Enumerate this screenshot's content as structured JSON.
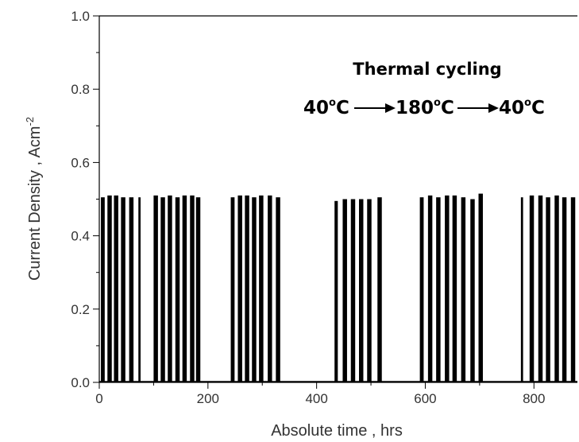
{
  "chart_data": {
    "type": "bar",
    "xlabel": "Absolute time , hrs",
    "ylabel": "Current Density , Acm",
    "ylabel_superscript": "-2",
    "xlim": [
      0,
      880
    ],
    "ylim": [
      0,
      1.0
    ],
    "x_ticks": [
      "0",
      "200",
      "400",
      "600",
      "800"
    ],
    "x_tick_values": [
      0,
      200,
      400,
      600,
      800
    ],
    "y_ticks": [
      "0.0",
      "0.2",
      "0.4",
      "0.6",
      "0.8",
      "1.0"
    ],
    "y_tick_values": [
      0.0,
      0.2,
      0.4,
      0.6,
      0.8,
      1.0
    ],
    "bar_color": "#000000",
    "annotations": {
      "title": "Thermal cycling",
      "sequence": [
        {
          "value": "40",
          "unit": "C"
        },
        {
          "value": "180",
          "unit": "C"
        },
        {
          "value": "40",
          "unit": "C"
        }
      ],
      "degree_symbol": "o"
    },
    "series": [
      {
        "x": [
          3,
          15,
          27,
          40,
          55,
          72,
          100,
          113,
          126,
          140,
          153,
          167,
          178,
          242,
          255,
          268,
          281,
          294,
          310,
          325,
          433,
          448,
          463,
          478,
          493,
          512,
          590,
          605,
          620,
          636,
          650,
          666,
          683,
          698,
          776,
          792,
          808,
          822,
          838,
          852,
          868
        ],
        "values": [
          0.505,
          0.51,
          0.51,
          0.505,
          0.505,
          0.505,
          0.51,
          0.505,
          0.51,
          0.505,
          0.51,
          0.51,
          0.505,
          0.505,
          0.51,
          0.51,
          0.505,
          0.51,
          0.51,
          0.505,
          0.495,
          0.5,
          0.5,
          0.5,
          0.5,
          0.505,
          0.505,
          0.51,
          0.505,
          0.51,
          0.51,
          0.505,
          0.5,
          0.515,
          0.505,
          0.51,
          0.51,
          0.505,
          0.51,
          0.505,
          0.505
        ],
        "widths": [
          7,
          8,
          8,
          8,
          8,
          4,
          8,
          8,
          8,
          8,
          8,
          8,
          8,
          7,
          8,
          8,
          8,
          8,
          8,
          8,
          6,
          8,
          8,
          8,
          8,
          8,
          7,
          8,
          8,
          8,
          8,
          8,
          8,
          8,
          4,
          8,
          8,
          8,
          8,
          8,
          8
        ]
      }
    ]
  }
}
